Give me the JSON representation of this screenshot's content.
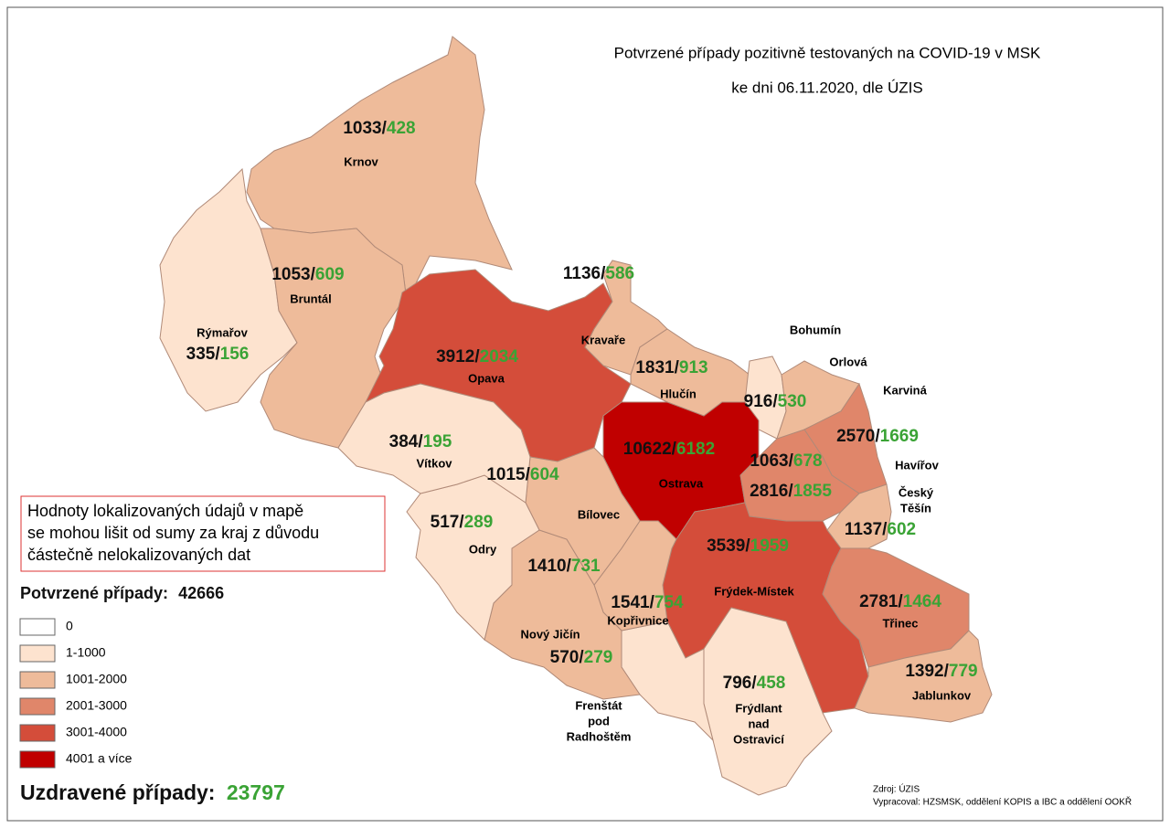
{
  "title": [
    "Potvrzené případy pozitivně testovaných na COVID-19 v MSK",
    "ke dni 06.11.2020, dle ÚZIS"
  ],
  "separator": "/",
  "regions": [
    {
      "name": [
        "Krnov"
      ],
      "confirmed": "1033",
      "recovered": "428",
      "color": "#eebb9a"
    },
    {
      "name": [
        "Rýmařov"
      ],
      "confirmed": "335",
      "recovered": "156",
      "color": "#fde3cf"
    },
    {
      "name": [
        "Bruntál"
      ],
      "confirmed": "1053",
      "recovered": "609",
      "color": "#eebb9a"
    },
    {
      "name": [
        "Opava"
      ],
      "confirmed": "3912",
      "recovered": "2034",
      "color": "#d44d3a"
    },
    {
      "name": [
        "Kravaře"
      ],
      "confirmed": "1136",
      "recovered": "586",
      "color": "#eebb9a"
    },
    {
      "name": [
        "Hlučín"
      ],
      "confirmed": "1831",
      "recovered": "913",
      "color": "#eebb9a"
    },
    {
      "name": [
        "Ostrava"
      ],
      "confirmed": "10622",
      "recovered": "6182",
      "color": "#c00000"
    },
    {
      "name": [
        "Bohumín"
      ],
      "confirmed": "916",
      "recovered": "530",
      "color": "#fde3cf"
    },
    {
      "name": [
        "Orlová"
      ],
      "confirmed": "1063",
      "recovered": "678",
      "color": "#eebb9a"
    },
    {
      "name": [
        "Karviná"
      ],
      "confirmed": "2570",
      "recovered": "1669",
      "color": "#e0866a"
    },
    {
      "name": [
        "Havířov"
      ],
      "confirmed": "2816",
      "recovered": "1855",
      "color": "#e0866a"
    },
    {
      "name": [
        "Český",
        "Těšín"
      ],
      "confirmed": "1137",
      "recovered": "602",
      "color": "#eebb9a"
    },
    {
      "name": [
        "Frýdek-Místek"
      ],
      "confirmed": "3539",
      "recovered": "1959",
      "color": "#d44d3a"
    },
    {
      "name": [
        "Třinec"
      ],
      "confirmed": "2781",
      "recovered": "1464",
      "color": "#e0866a"
    },
    {
      "name": [
        "Jablunkov"
      ],
      "confirmed": "1392",
      "recovered": "779",
      "color": "#eebb9a"
    },
    {
      "name": [
        "Frýdlant",
        "nad",
        "Ostravicí"
      ],
      "confirmed": "796",
      "recovered": "458",
      "color": "#fde3cf"
    },
    {
      "name": [
        "Frenštát",
        "pod",
        "Radhoštěm"
      ],
      "confirmed": "570",
      "recovered": "279",
      "color": "#fde3cf"
    },
    {
      "name": [
        "Kopřivnice"
      ],
      "confirmed": "1541",
      "recovered": "754",
      "color": "#eebb9a"
    },
    {
      "name": [
        "Nový Jičín"
      ],
      "confirmed": "1410",
      "recovered": "731",
      "color": "#eebb9a"
    },
    {
      "name": [
        "Bílovec"
      ],
      "confirmed": "1015",
      "recovered": "604",
      "color": "#eebb9a"
    },
    {
      "name": [
        "Odry"
      ],
      "confirmed": "517",
      "recovered": "289",
      "color": "#fde3cf"
    },
    {
      "name": [
        "Vítkov"
      ],
      "confirmed": "384",
      "recovered": "195",
      "color": "#fde3cf"
    }
  ],
  "note": [
    "Hodnoty lokalizovaných údajů v mapě",
    "se mohou lišit od sumy za kraj z důvodu",
    "částečně nelokalizovaných dat"
  ],
  "legend": {
    "title": "Potvrzené případy:",
    "total": "42666",
    "items": [
      {
        "label": "0",
        "color": "#ffffff"
      },
      {
        "label": "1-1000",
        "color": "#fde3cf"
      },
      {
        "label": "1001-2000",
        "color": "#eebb9a"
      },
      {
        "label": "2001-3000",
        "color": "#e0866a"
      },
      {
        "label": "3001-4000",
        "color": "#d44d3a"
      },
      {
        "label": "4001 a více",
        "color": "#c00000"
      }
    ]
  },
  "recovered": {
    "label": "Uzdravené případy:",
    "total": "23797"
  },
  "source": [
    "Zdroj: ÚZIS",
    "Vypracoval: HZSMSK, oddělení KOPIS a IBC a oddělení OOKŘ"
  ]
}
